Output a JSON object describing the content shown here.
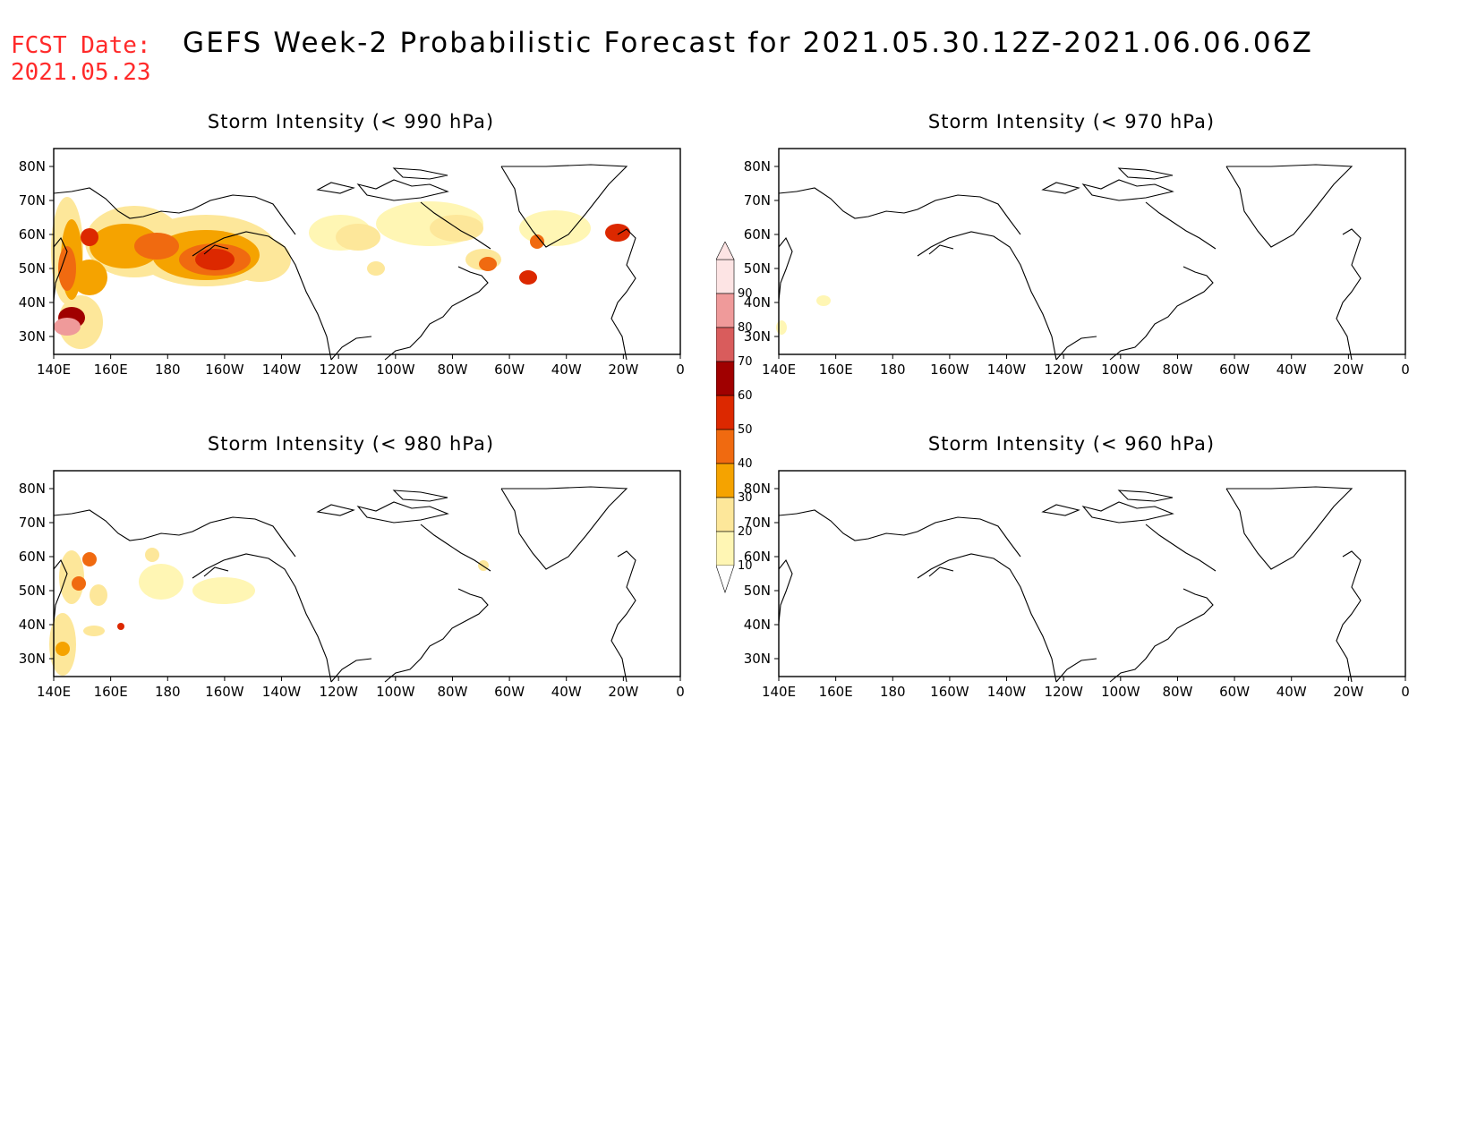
{
  "header": {
    "fcst_label": "FCST Date:",
    "fcst_date": "2021.05.23",
    "title": "GEFS Week-2 Probabilistic Forecast for 2021.05.30.12Z-2021.06.06.06Z"
  },
  "panels": [
    {
      "id": "p990",
      "title": "Storm Intensity (< 990 hPa)"
    },
    {
      "id": "p970",
      "title": "Storm Intensity (< 970 hPa)"
    },
    {
      "id": "p980",
      "title": "Storm Intensity (< 980 hPa)"
    },
    {
      "id": "p960",
      "title": "Storm Intensity (< 960 hPa)"
    }
  ],
  "axes": {
    "lon_labels": [
      "140E",
      "160E",
      "180",
      "160W",
      "140W",
      "120W",
      "100W",
      "80W",
      "60W",
      "40W",
      "20W",
      "0"
    ],
    "lat_labels": [
      "80N",
      "70N",
      "60N",
      "50N",
      "40N",
      "30N"
    ]
  },
  "colorbar": {
    "levels": [
      "10",
      "20",
      "30",
      "40",
      "50",
      "60",
      "70",
      "80",
      "90"
    ],
    "colors": [
      "#fff6b4",
      "#fde79a",
      "#f5a300",
      "#f06a10",
      "#dc2800",
      "#a00000",
      "#d95c5c",
      "#ef9a9a",
      "#fde4e4"
    ]
  }
}
